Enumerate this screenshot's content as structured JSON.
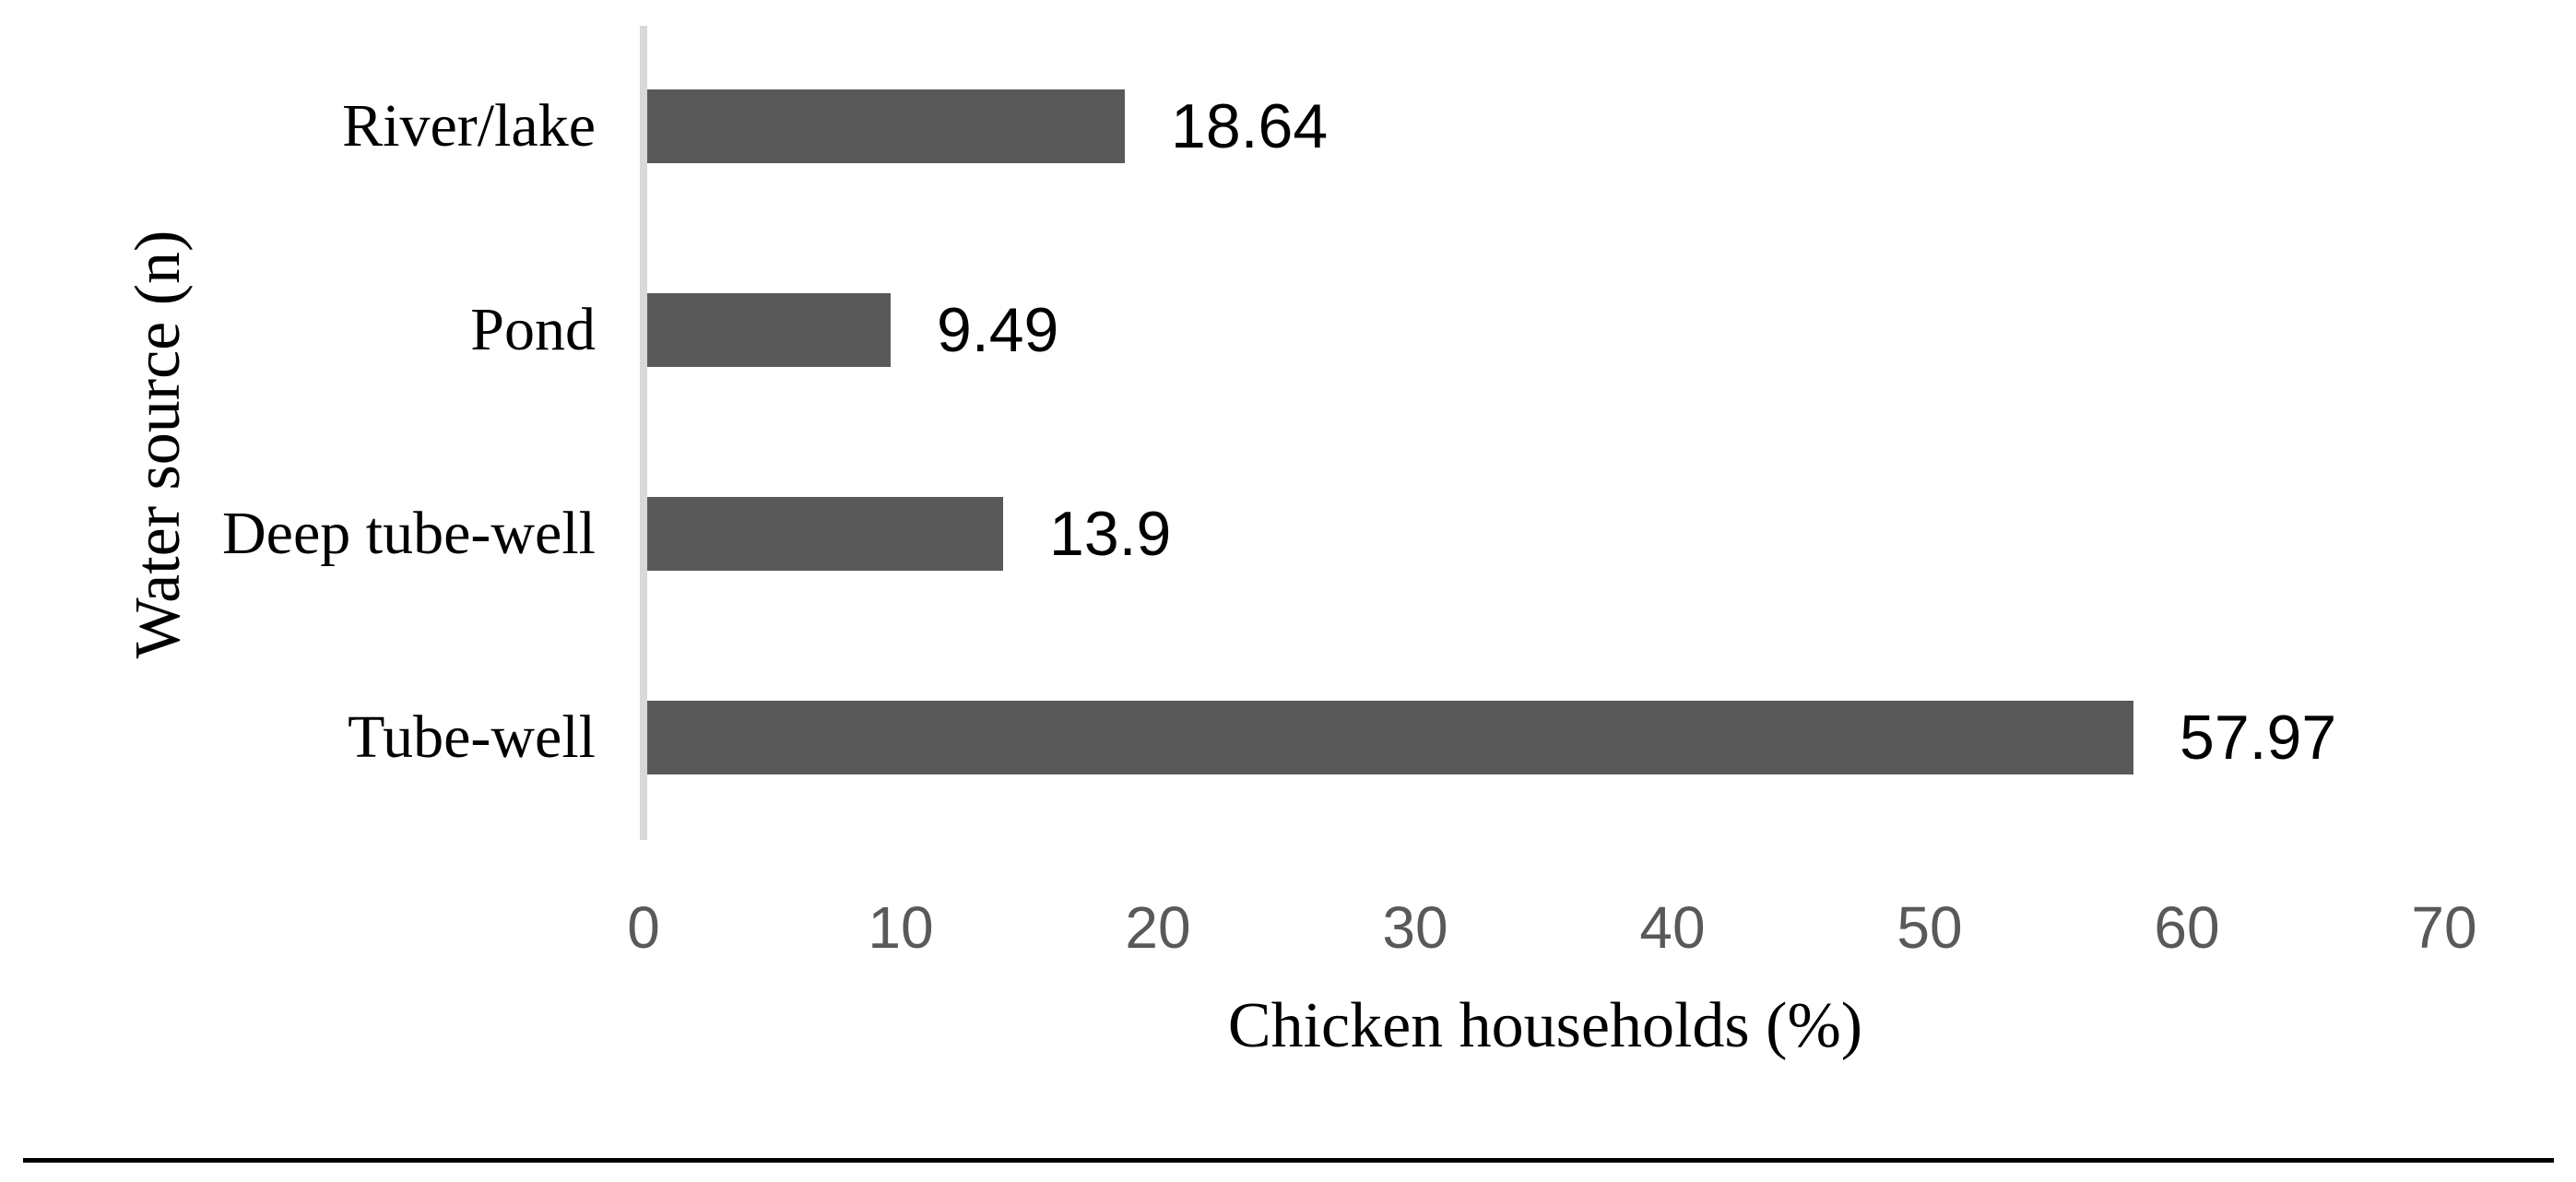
{
  "chart_data": {
    "type": "bar",
    "orientation": "horizontal",
    "title": "",
    "xlabel": "Chicken households (%)",
    "ylabel": "Water source (n)",
    "xlim": [
      0,
      70
    ],
    "x_ticks": [
      0,
      10,
      20,
      30,
      40,
      50,
      60,
      70
    ],
    "grid": false,
    "legend": false,
    "categories": [
      "River/lake",
      "Pond",
      "Deep tube-well",
      "Tube-well"
    ],
    "values": [
      18.64,
      9.49,
      13.9,
      57.97
    ],
    "rows": [
      {
        "category": "River/lake",
        "value": 18.64,
        "value_label": "18.64"
      },
      {
        "category": "Pond",
        "value": 9.49,
        "value_label": "9.49"
      },
      {
        "category": "Deep tube-well",
        "value": 13.9,
        "value_label": "13.9"
      },
      {
        "category": "Tube-well",
        "value": 57.97,
        "value_label": "57.97"
      }
    ],
    "colors": {
      "bar": "#595959",
      "axis_line": "#D9D9D9",
      "tick_labels": "#595959",
      "text": "#000000"
    }
  }
}
